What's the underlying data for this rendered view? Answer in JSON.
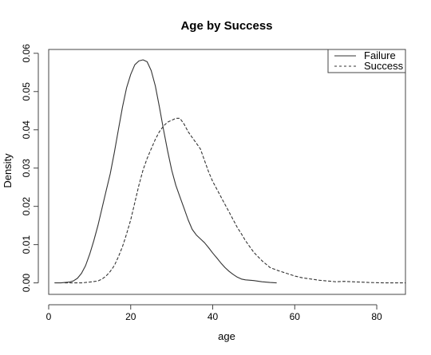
{
  "chart_data": {
    "type": "line",
    "title": "Age by Success",
    "xlabel": "age",
    "ylabel": "Density",
    "xlim": [
      0,
      87
    ],
    "ylim": [
      -0.003,
      0.061
    ],
    "xticks": [
      0,
      20,
      40,
      60,
      80
    ],
    "yticks": [
      "0.00",
      "0.01",
      "0.02",
      "0.03",
      "0.04",
      "0.05",
      "0.06"
    ],
    "grid": false,
    "legend_position": "top-right",
    "series": [
      {
        "name": "Failure",
        "line_style": "solid",
        "color": "#333333",
        "points": [
          [
            1.5,
            0.0
          ],
          [
            3,
            0.0
          ],
          [
            5,
            0.0002
          ],
          [
            6,
            0.0005
          ],
          [
            7,
            0.0012
          ],
          [
            8,
            0.0025
          ],
          [
            9,
            0.0045
          ],
          [
            10,
            0.0075
          ],
          [
            11,
            0.011
          ],
          [
            12,
            0.015
          ],
          [
            13,
            0.0195
          ],
          [
            14,
            0.024
          ],
          [
            15,
            0.0285
          ],
          [
            16,
            0.034
          ],
          [
            17,
            0.04
          ],
          [
            18,
            0.046
          ],
          [
            19,
            0.051
          ],
          [
            20,
            0.0545
          ],
          [
            21,
            0.057
          ],
          [
            22,
            0.058
          ],
          [
            23,
            0.0583
          ],
          [
            24,
            0.0578
          ],
          [
            25,
            0.0555
          ],
          [
            26,
            0.0515
          ],
          [
            27,
            0.046
          ],
          [
            28,
            0.04
          ],
          [
            29,
            0.0345
          ],
          [
            30,
            0.0295
          ],
          [
            31,
            0.0255
          ],
          [
            32,
            0.0225
          ],
          [
            33,
            0.0195
          ],
          [
            34,
            0.0165
          ],
          [
            35,
            0.014
          ],
          [
            36,
            0.0125
          ],
          [
            37,
            0.0115
          ],
          [
            38,
            0.0105
          ],
          [
            39,
            0.0092
          ],
          [
            40,
            0.0078
          ],
          [
            41,
            0.0065
          ],
          [
            42,
            0.0052
          ],
          [
            43,
            0.004
          ],
          [
            44,
            0.003
          ],
          [
            45,
            0.0022
          ],
          [
            46,
            0.0015
          ],
          [
            47,
            0.001
          ],
          [
            48,
            0.0008
          ],
          [
            50,
            0.0006
          ],
          [
            52,
            0.0003
          ],
          [
            54,
            0.0001
          ],
          [
            55.5,
            0.0
          ]
        ]
      },
      {
        "name": "Success",
        "line_style": "dashed",
        "color": "#333333",
        "points": [
          [
            4,
            0.0
          ],
          [
            8,
            0.0
          ],
          [
            10,
            0.0002
          ],
          [
            12,
            0.0005
          ],
          [
            13,
            0.001
          ],
          [
            14,
            0.0018
          ],
          [
            15,
            0.003
          ],
          [
            16,
            0.0045
          ],
          [
            17,
            0.0068
          ],
          [
            18,
            0.0095
          ],
          [
            19,
            0.0128
          ],
          [
            20,
            0.0165
          ],
          [
            21,
            0.021
          ],
          [
            22,
            0.0255
          ],
          [
            23,
            0.0295
          ],
          [
            24,
            0.0325
          ],
          [
            25,
            0.035
          ],
          [
            26,
            0.0375
          ],
          [
            27,
            0.0395
          ],
          [
            28,
            0.041
          ],
          [
            29,
            0.042
          ],
          [
            30,
            0.0425
          ],
          [
            31,
            0.043
          ],
          [
            32,
            0.043
          ],
          [
            33,
            0.0415
          ],
          [
            34,
            0.0395
          ],
          [
            35,
            0.038
          ],
          [
            36,
            0.0365
          ],
          [
            37,
            0.035
          ],
          [
            38,
            0.032
          ],
          [
            39,
            0.029
          ],
          [
            40,
            0.0265
          ],
          [
            41,
            0.0245
          ],
          [
            42,
            0.0225
          ],
          [
            43,
            0.0205
          ],
          [
            44,
            0.0185
          ],
          [
            45,
            0.0165
          ],
          [
            46,
            0.0145
          ],
          [
            47,
            0.0128
          ],
          [
            48,
            0.011
          ],
          [
            50,
            0.008
          ],
          [
            52,
            0.0058
          ],
          [
            54,
            0.004
          ],
          [
            56,
            0.0032
          ],
          [
            58,
            0.0025
          ],
          [
            60,
            0.0018
          ],
          [
            62,
            0.0013
          ],
          [
            64,
            0.001
          ],
          [
            66,
            0.0007
          ],
          [
            68,
            0.0005
          ],
          [
            70,
            0.0003
          ],
          [
            72,
            0.0004
          ],
          [
            74,
            0.0003
          ],
          [
            76,
            0.0002
          ],
          [
            78,
            0.0001
          ],
          [
            82,
            0.0
          ],
          [
            87,
            0.0
          ]
        ]
      }
    ]
  },
  "colors": {
    "axis": "#444444",
    "background": "#ffffff"
  }
}
